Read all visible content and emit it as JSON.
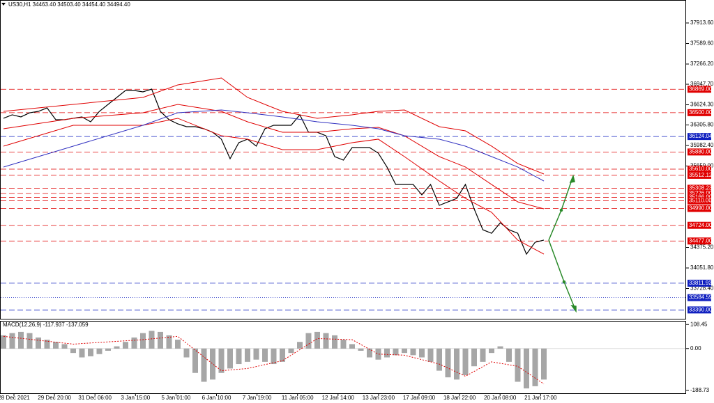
{
  "chart_data": [
    {
      "type": "line",
      "title": "US30,H1  34463.40 34503.40 34454.40 34494.40",
      "ylim": [
        33251,
        38275.6
      ],
      "yticks": [
        {
          "value": 37913.6,
          "label": "37913.60"
        },
        {
          "value": 37589.6,
          "label": "37589.60"
        },
        {
          "value": 37266.2,
          "label": "37266.20"
        },
        {
          "value": 36947.7,
          "label": "36947.70"
        },
        {
          "value": 36624.3,
          "label": "36624.30"
        },
        {
          "value": 36305.8,
          "label": "36305.80"
        },
        {
          "value": 35982.4,
          "label": "35982.40"
        },
        {
          "value": 35659,
          "label": "35659.00"
        },
        {
          "value": 34375.2,
          "label": "34375.20"
        },
        {
          "value": 34051.8,
          "label": "34051.80"
        },
        {
          "value": 33728.4,
          "label": "33728.40"
        }
      ],
      "x_labels": [
        "28 Dec 2021",
        "29 Dec 20:00",
        "31 Dec 06:00",
        "3 Jan 15:00",
        "5 Jan 01:00",
        "6 Jan 10:00",
        "7 Jan 19:00",
        "11 Jan 05:00",
        "12 Jan 14:00",
        "13 Jan 23:00",
        "17 Jan 09:00",
        "18 Jan 22:00",
        "20 Jan 08:00",
        "21 Jan 17:00"
      ],
      "series": [
        {
          "color": "#000000",
          "values": [
            36411,
            36466,
            36433,
            36498,
            36520,
            36575,
            36389,
            36389,
            36411,
            36433,
            36356,
            36520,
            36630,
            36740,
            36849,
            36849,
            36828,
            36871,
            36520,
            36389,
            36323,
            36279,
            36279,
            36246,
            36191,
            36082,
            35774,
            36027,
            36082,
            35972,
            36246,
            36301,
            36301,
            36301,
            36466,
            36191,
            36191,
            36136,
            35807,
            35752,
            35950,
            35950,
            35950,
            35862,
            35643,
            35368,
            35368,
            35368,
            35204,
            35368,
            35039,
            35094,
            35149,
            35368,
            34984,
            34654,
            34599,
            34764,
            34654,
            34599,
            34270,
            34458,
            34491
          ]
        },
        {
          "color": "#e00000",
          "x": [
            0,
            8,
            16,
            20,
            25,
            28,
            32,
            36,
            40,
            43,
            46,
            50,
            53,
            56,
            59,
            62
          ],
          "values": [
            36520,
            36630,
            36740,
            36937,
            37047,
            36740,
            36520,
            36411,
            36466,
            36520,
            36542,
            36279,
            36213,
            35972,
            35698,
            35533
          ]
        },
        {
          "color": "#e00000",
          "x": [
            0,
            8,
            16,
            20,
            25,
            28,
            32,
            36,
            40,
            43,
            46,
            50,
            53,
            56,
            59,
            62
          ],
          "values": [
            35972,
            36301,
            36301,
            36411,
            36136,
            36082,
            35917,
            35917,
            36027,
            36082,
            35807,
            35423,
            35149,
            34929,
            34491,
            34270
          ]
        },
        {
          "color": "#e00000",
          "x": [
            0,
            8,
            16,
            20,
            25,
            28,
            32,
            36,
            40,
            43,
            46,
            50,
            53,
            56,
            59,
            62
          ],
          "values": [
            36246,
            36411,
            36498,
            36630,
            36520,
            36356,
            36191,
            36191,
            36246,
            36268,
            36136,
            35807,
            35643,
            35368,
            35094,
            34984
          ]
        },
        {
          "color": "#3030c0",
          "x": [
            0,
            8,
            16,
            20,
            25,
            28,
            32,
            36,
            40,
            43,
            46,
            50,
            53,
            56,
            59,
            62
          ],
          "values": [
            35643,
            35972,
            36301,
            36498,
            36542,
            36498,
            36433,
            36356,
            36301,
            36246,
            36136,
            36082,
            35972,
            35807,
            35643,
            35423
          ]
        }
      ],
      "levels": [
        {
          "value": 36869,
          "label": "36869.00",
          "color": "#e00000"
        },
        {
          "value": 36500,
          "label": "36500.00",
          "color": "#e00000"
        },
        {
          "value": 36124.04,
          "label": "36124.04",
          "color": "#1020c0"
        },
        {
          "value": 35880,
          "label": "35880.00",
          "color": "#e00000"
        },
        {
          "value": 35610,
          "label": "35610.00",
          "color": "#e00000"
        },
        {
          "value": 35512.12,
          "label": "35512.12",
          "color": "#e00000"
        },
        {
          "value": 35308.23,
          "label": "35308.23",
          "color": "#e00000"
        },
        {
          "value": 35226,
          "label": "35226.00",
          "color": "#e00000"
        },
        {
          "value": 35166,
          "label": "35166.00",
          "color": "#e00000"
        },
        {
          "value": 35110,
          "label": "35110.00",
          "color": "#e00000"
        },
        {
          "value": 34990,
          "label": "34990.00",
          "color": "#e00000"
        },
        {
          "value": 34724,
          "label": "34724.00",
          "color": "#e00000"
        },
        {
          "value": 34477,
          "label": "34477.00",
          "color": "#e00000"
        },
        {
          "value": 33811.92,
          "label": "33811.92",
          "color": "#1020c0"
        },
        {
          "value": 33584.59,
          "label": "33584.59",
          "color": "#1020c0"
        },
        {
          "value": 33390,
          "label": "33390.00",
          "color": "#1020c0"
        }
      ]
    },
    {
      "type": "bar",
      "title": "MACD(12,26,9) -117.937 -137.059",
      "ylim": [
        -205,
        125
      ],
      "yticks": [
        {
          "value": 108.45,
          "label": "108.45"
        },
        {
          "value": 0,
          "label": "0.00"
        },
        {
          "value": -188.73,
          "label": "-188.73"
        }
      ],
      "color": "#808080",
      "values": [
        60,
        70,
        75,
        70,
        50,
        40,
        30,
        20,
        -20,
        -40,
        -35,
        -25,
        -10,
        10,
        30,
        50,
        70,
        80,
        75,
        60,
        40,
        -40,
        -110,
        -150,
        -140,
        -110,
        -90,
        -70,
        -60,
        -50,
        -60,
        -70,
        -60,
        -20,
        30,
        70,
        75,
        70,
        60,
        40,
        20,
        -10,
        -40,
        -50,
        -40,
        -30,
        -20,
        -30,
        -40,
        -60,
        -100,
        -130,
        -140,
        -120,
        -80,
        -60,
        -20,
        10,
        -60,
        -150,
        -180,
        -170,
        -140
      ],
      "signal": {
        "color": "#e00000",
        "x": [
          0,
          8,
          16,
          20,
          25,
          28,
          32,
          36,
          40,
          43,
          46,
          50,
          53,
          56,
          59,
          62
        ],
        "values": [
          55,
          20,
          40,
          55,
          -100,
          -90,
          -55,
          45,
          40,
          -25,
          -30,
          -70,
          -125,
          -60,
          -80,
          -160
        ]
      }
    }
  ]
}
